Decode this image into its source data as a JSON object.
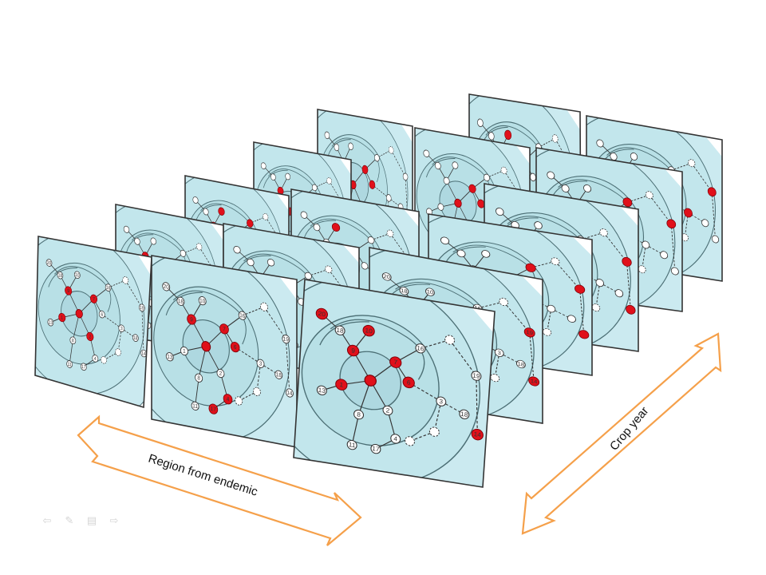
{
  "axes": {
    "region_label": "Region from endemic",
    "crop_year_label": "Crop year"
  },
  "colors": {
    "panel_fill": "#cdeef2",
    "ring_fill": "#bfe4ea",
    "ring_stroke": "#4c6f75",
    "panel_border": "#333333",
    "node_fill": "#ffffff",
    "node_infected": "#e0101a",
    "arrow_stroke": "#f5a04a"
  },
  "network": {
    "node_labels": [
      "20",
      "18",
      "10",
      "9",
      "7",
      "16",
      "6",
      "1",
      "13",
      "8",
      "2",
      "4",
      "17",
      "11",
      "3",
      "18",
      "19",
      "14",
      "12",
      "5",
      "15"
    ]
  },
  "slideshow_controls": [
    "back-arrow-icon",
    "pen-icon",
    "menu-icon",
    "forward-arrow-icon"
  ]
}
